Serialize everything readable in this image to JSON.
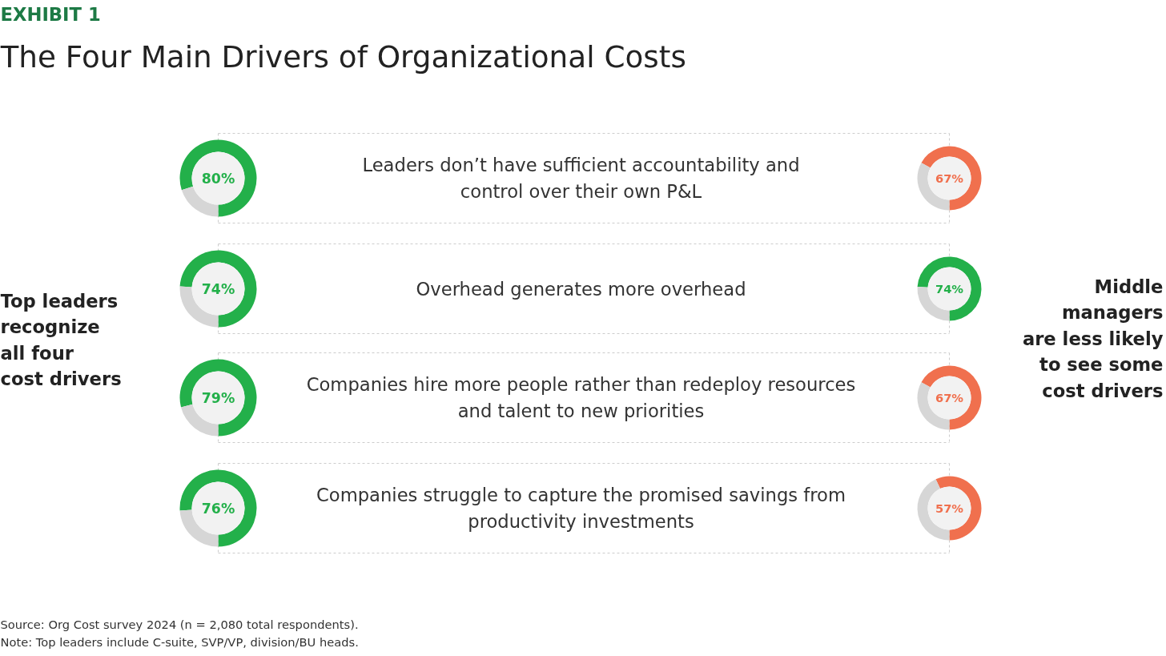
{
  "chart_data": [
    {
      "type": "other",
      "title": "The Four Main Drivers of Organizational Costs",
      "subtitle": "EXHIBIT 1",
      "annotations": [
        "Top leaders\nrecognize\nall four\ncost drivers",
        "Middle\nmanagers\nare less likely\nto see some\ncost drivers",
        "Leaders don’t have sufficient accountability and\ncontrol over their own P&L",
        "Overhead generates more overhead",
        "Companies hire more people rather than redeploy resources\nand talent to new priorities",
        "Companies struggle to capture the promised savings from\nproductivity investments",
        "Source: Org Cost survey 2024 (n = 2,080 total respondents).",
        "Note: Top leaders include C-suite, SVP/VP, division/BU heads."
      ]
    },
    {
      "type": "donut",
      "categories": [
        null,
        null
      ],
      "values": [
        80,
        20
      ],
      "colors": [
        "#23b04a",
        "#d6d6d6"
      ],
      "value_labels": [
        "80%",
        null
      ]
    },
    {
      "type": "donut",
      "categories": [
        null,
        null
      ],
      "values": [
        74,
        26
      ],
      "colors": [
        "#23b04a",
        "#d6d6d6"
      ],
      "value_labels": [
        "74%",
        null
      ]
    },
    {
      "type": "donut",
      "categories": [
        null,
        null
      ],
      "values": [
        79,
        21
      ],
      "colors": [
        "#23b04a",
        "#d6d6d6"
      ],
      "value_labels": [
        "79%",
        null
      ]
    },
    {
      "type": "donut",
      "categories": [
        null,
        null
      ],
      "values": [
        76,
        24
      ],
      "colors": [
        "#23b04a",
        "#d6d6d6"
      ],
      "value_labels": [
        "76%",
        null
      ]
    },
    {
      "type": "donut",
      "categories": [
        null,
        null
      ],
      "values": [
        67,
        33
      ],
      "colors": [
        "#f0704e",
        "#d6d6d6"
      ],
      "value_labels": [
        "67%",
        null
      ]
    },
    {
      "type": "donut",
      "categories": [
        null,
        null
      ],
      "values": [
        74,
        26
      ],
      "colors": [
        "#23b04a",
        "#d6d6d6"
      ],
      "value_labels": [
        "74%",
        null
      ]
    },
    {
      "type": "donut",
      "categories": [
        null,
        null
      ],
      "values": [
        67,
        33
      ],
      "colors": [
        "#f0704e",
        "#d6d6d6"
      ],
      "value_labels": [
        "67%",
        null
      ]
    },
    {
      "type": "donut",
      "categories": [
        null,
        null
      ],
      "values": [
        57,
        43
      ],
      "colors": [
        "#f0704e",
        "#d6d6d6"
      ],
      "value_labels": [
        "57%",
        null
      ]
    }
  ]
}
